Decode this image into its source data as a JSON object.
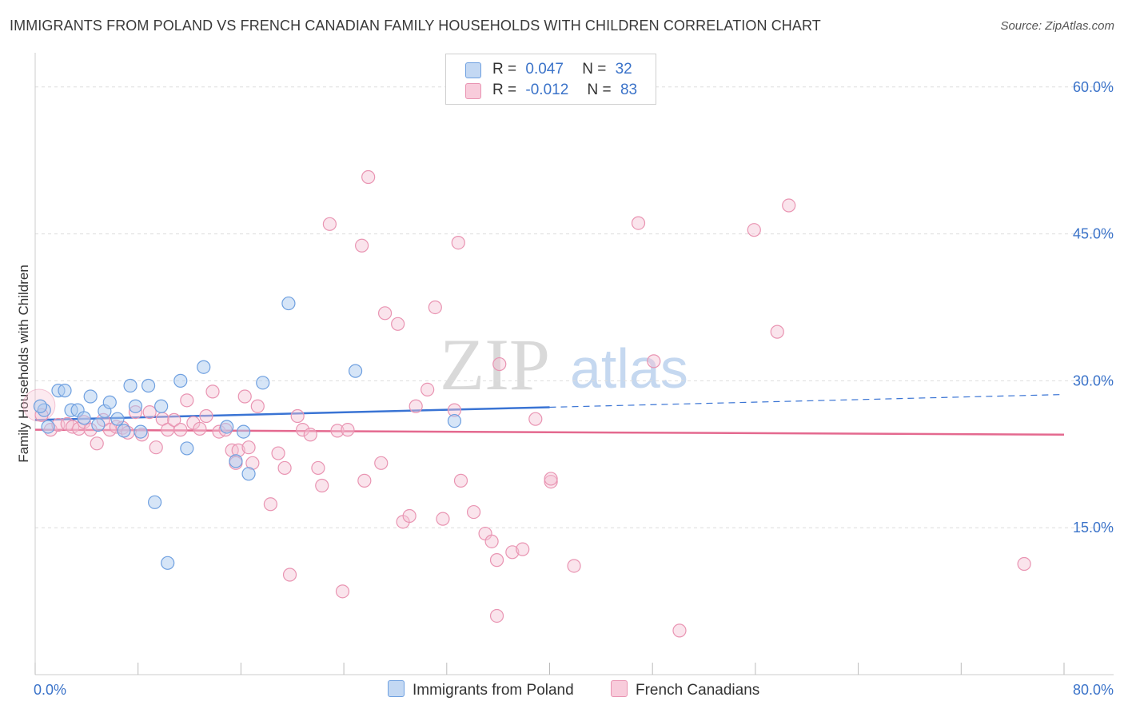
{
  "title": "IMMIGRANTS FROM POLAND VS FRENCH CANADIAN FAMILY HOUSEHOLDS WITH CHILDREN CORRELATION CHART",
  "source": "Source: ZipAtlas.com",
  "watermark": {
    "zip": "ZIP",
    "atlas": "atlas"
  },
  "colors": {
    "poland": "#6fa0e0",
    "poland_fill": "#aecbf0",
    "poland_line": "#3a74d4",
    "french": "#e994b2",
    "french_fill": "#f5c4d5",
    "french_line": "#e4698f",
    "axis_text": "#3b73c9",
    "grid": "#dddddd"
  },
  "legend_top": {
    "rows": [
      {
        "r_label": "R =",
        "r_value": "0.047",
        "n_label": "N =",
        "n_value": "32"
      },
      {
        "r_label": "R =",
        "r_value": "-0.012",
        "n_label": "N =",
        "n_value": "83"
      }
    ]
  },
  "legend_bottom": {
    "items": [
      "Immigrants from Poland",
      "French Canadians"
    ]
  },
  "chart_data": {
    "type": "scatter",
    "title": "IMMIGRANTS FROM POLAND VS FRENCH CANADIAN FAMILY HOUSEHOLDS WITH CHILDREN CORRELATION CHART",
    "xlabel": "",
    "ylabel": "Family Households with Children",
    "xlim": [
      0,
      80
    ],
    "ylim": [
      0,
      63
    ],
    "x_tick_labels": [
      "0.0%",
      "80.0%"
    ],
    "y_tick_labels": [
      "15.0%",
      "30.0%",
      "45.0%",
      "60.0%"
    ],
    "y_ticks": [
      15,
      30,
      45,
      60
    ],
    "grid": true,
    "series": [
      {
        "name": "Immigrants from Poland",
        "points": [
          [
            0.7,
            27.0
          ],
          [
            1.0,
            25.3
          ],
          [
            1.8,
            29.0
          ],
          [
            2.3,
            29.0
          ],
          [
            2.8,
            27.0
          ],
          [
            3.3,
            27.0
          ],
          [
            3.8,
            26.2
          ],
          [
            4.3,
            28.4
          ],
          [
            4.9,
            25.5
          ],
          [
            5.4,
            26.9
          ],
          [
            5.8,
            27.8
          ],
          [
            6.4,
            26.1
          ],
          [
            6.9,
            24.9
          ],
          [
            7.4,
            29.5
          ],
          [
            7.8,
            27.4
          ],
          [
            8.2,
            24.8
          ],
          [
            8.8,
            29.5
          ],
          [
            9.3,
            17.6
          ],
          [
            9.8,
            27.4
          ],
          [
            10.3,
            11.4
          ],
          [
            11.3,
            30.0
          ],
          [
            11.8,
            23.1
          ],
          [
            13.1,
            31.4
          ],
          [
            14.9,
            25.3
          ],
          [
            15.6,
            21.8
          ],
          [
            16.2,
            24.8
          ],
          [
            16.6,
            20.5
          ],
          [
            17.7,
            29.8
          ],
          [
            19.7,
            37.9
          ],
          [
            24.9,
            31.0
          ],
          [
            32.6,
            25.9
          ],
          [
            0.4,
            27.4
          ]
        ],
        "trend": {
          "x": [
            0,
            40,
            80
          ],
          "y": [
            26.0,
            27.3,
            28.6
          ]
        }
      },
      {
        "name": "French Canadians",
        "points": [
          [
            0.5,
            26.5
          ],
          [
            1.2,
            25.0
          ],
          [
            1.8,
            25.5
          ],
          [
            2.5,
            25.6
          ],
          [
            2.9,
            25.3
          ],
          [
            3.4,
            25.1
          ],
          [
            3.8,
            25.8
          ],
          [
            4.3,
            25.0
          ],
          [
            4.8,
            23.6
          ],
          [
            5.3,
            26.0
          ],
          [
            5.8,
            25.0
          ],
          [
            6.3,
            25.3
          ],
          [
            6.8,
            25.2
          ],
          [
            7.2,
            24.7
          ],
          [
            7.8,
            26.8
          ],
          [
            8.3,
            24.5
          ],
          [
            8.9,
            26.8
          ],
          [
            9.4,
            23.2
          ],
          [
            9.9,
            26.1
          ],
          [
            10.3,
            25.0
          ],
          [
            10.8,
            26.0
          ],
          [
            11.3,
            25.0
          ],
          [
            11.8,
            28.0
          ],
          [
            12.3,
            25.7
          ],
          [
            12.8,
            25.1
          ],
          [
            13.3,
            26.4
          ],
          [
            13.8,
            28.9
          ],
          [
            14.3,
            24.8
          ],
          [
            14.8,
            25.0
          ],
          [
            15.3,
            22.9
          ],
          [
            15.6,
            21.6
          ],
          [
            15.8,
            22.9
          ],
          [
            16.3,
            28.4
          ],
          [
            16.6,
            23.2
          ],
          [
            16.9,
            21.6
          ],
          [
            17.3,
            27.4
          ],
          [
            18.3,
            17.4
          ],
          [
            18.9,
            22.6
          ],
          [
            19.4,
            21.1
          ],
          [
            19.8,
            10.2
          ],
          [
            20.4,
            26.4
          ],
          [
            20.8,
            25.0
          ],
          [
            21.4,
            24.5
          ],
          [
            22.0,
            21.1
          ],
          [
            22.3,
            19.3
          ],
          [
            22.9,
            46.0
          ],
          [
            23.5,
            24.9
          ],
          [
            23.9,
            8.5
          ],
          [
            24.3,
            25.0
          ],
          [
            25.4,
            43.8
          ],
          [
            25.6,
            19.8
          ],
          [
            25.9,
            50.8
          ],
          [
            26.9,
            21.6
          ],
          [
            27.2,
            36.9
          ],
          [
            28.2,
            35.8
          ],
          [
            28.6,
            15.6
          ],
          [
            29.1,
            16.2
          ],
          [
            29.6,
            27.4
          ],
          [
            30.5,
            29.1
          ],
          [
            31.1,
            37.5
          ],
          [
            31.7,
            15.9
          ],
          [
            32.6,
            27.0
          ],
          [
            32.9,
            44.1
          ],
          [
            33.1,
            19.8
          ],
          [
            34.1,
            16.6
          ],
          [
            35.0,
            14.4
          ],
          [
            35.5,
            13.6
          ],
          [
            35.9,
            11.7
          ],
          [
            35.9,
            6.0
          ],
          [
            36.1,
            31.7
          ],
          [
            37.1,
            12.5
          ],
          [
            37.9,
            12.8
          ],
          [
            38.9,
            26.1
          ],
          [
            40.1,
            19.7
          ],
          [
            40.1,
            20.0
          ],
          [
            41.9,
            11.1
          ],
          [
            46.9,
            46.1
          ],
          [
            48.1,
            32.0
          ],
          [
            50.1,
            4.5
          ],
          [
            55.9,
            45.4
          ],
          [
            57.7,
            35.0
          ],
          [
            58.6,
            47.9
          ],
          [
            76.9,
            11.3
          ]
        ],
        "trend": {
          "x": [
            0,
            80
          ],
          "y": [
            25.0,
            24.5
          ]
        }
      }
    ],
    "legend": "top-center"
  }
}
